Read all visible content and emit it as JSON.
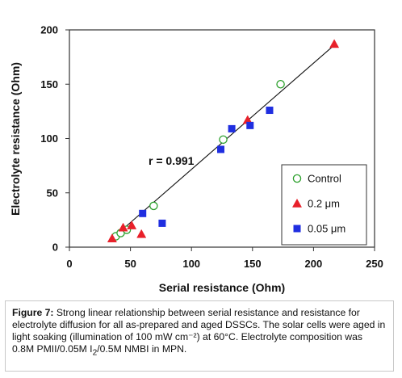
{
  "chart_data": {
    "type": "scatter",
    "xlabel": "Serial resistance (Ohm)",
    "ylabel": "Electrolyte resistance (Ohm)",
    "xlim": [
      0,
      250
    ],
    "ylim": [
      0,
      200
    ],
    "xticks": [
      0,
      50,
      100,
      150,
      200,
      250
    ],
    "yticks": [
      0,
      50,
      100,
      150,
      200
    ],
    "grid": false,
    "legend_position": "bottom-right",
    "annotation": "r = 0.991",
    "series": [
      {
        "name": "Control",
        "marker": "circle-open",
        "color": "#2ca02c",
        "x": [
          38,
          42,
          47,
          69,
          126,
          173
        ],
        "y": [
          10,
          13,
          16,
          38,
          99,
          150
        ]
      },
      {
        "name": "0.2 μm",
        "marker": "triangle",
        "color": "#e8202a",
        "x": [
          35,
          44,
          51,
          59,
          146,
          217
        ],
        "y": [
          8,
          18,
          20,
          12,
          117,
          187
        ]
      },
      {
        "name": "0.05 μm",
        "marker": "square",
        "color": "#1f2ee0",
        "x": [
          60,
          76,
          124,
          133,
          148,
          164
        ],
        "y": [
          31,
          22,
          90,
          109,
          112,
          126
        ]
      }
    ],
    "fit_line": {
      "x": [
        35,
        217
      ],
      "y": [
        8,
        186
      ]
    }
  },
  "caption": {
    "label": "Figure 7:",
    "text_part1": " Strong linear relationship between serial resistance and resistance for electrolyte diffusion for all as-prepared and aged DSSCs. The solar cells were aged in light soaking (illumination of 100 mW cm⁻²) at 60°C. Electrolyte composition was 0.8M PMII/0.05M I",
    "subscript": "2",
    "text_part2": "/0.5M NMBI in MPN."
  }
}
